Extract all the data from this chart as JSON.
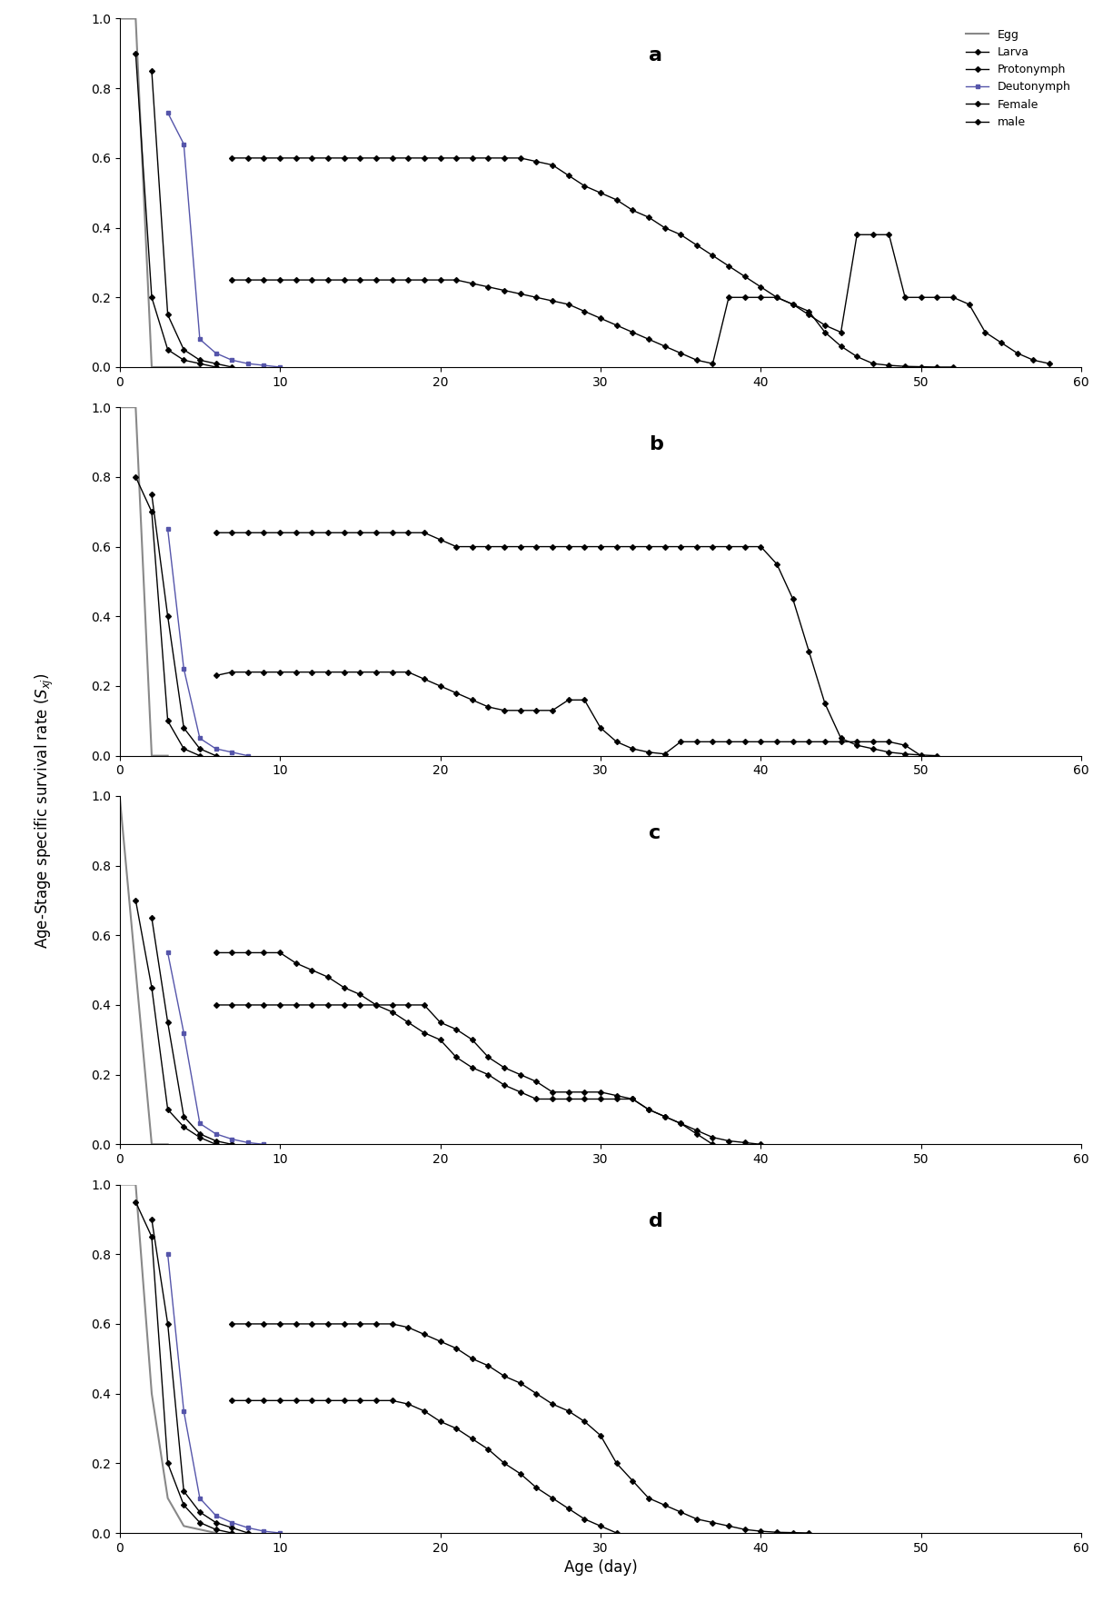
{
  "panels": [
    "a",
    "b",
    "c",
    "d"
  ],
  "xlabel": "Age (day)",
  "ylabel": "Age-Stage specific survival rate (Sₓ⨼)",
  "xlim": [
    0,
    60
  ],
  "ylim": [
    0,
    1
  ],
  "yticks": [
    0,
    0.2,
    0.4,
    0.6,
    0.8,
    1
  ],
  "xticks": [
    0,
    10,
    20,
    30,
    40,
    50,
    60
  ],
  "legend_labels": [
    "Egg",
    "Larva",
    "Protonymph",
    "Deutonymph",
    "Female",
    "male"
  ],
  "panel_a": {
    "egg": {
      "x": [
        0,
        1,
        2,
        3,
        4,
        5
      ],
      "y": [
        1.0,
        1.0,
        0.0,
        0.0,
        0.0,
        0.0
      ]
    },
    "larva": {
      "x": [
        1,
        2,
        3,
        4,
        5,
        6
      ],
      "y": [
        0.9,
        0.2,
        0.05,
        0.02,
        0.01,
        0.0
      ]
    },
    "protonymph": {
      "x": [
        2,
        3,
        4,
        5,
        6,
        7
      ],
      "y": [
        0.85,
        0.15,
        0.05,
        0.02,
        0.01,
        0.0
      ]
    },
    "deutonymph": {
      "x": [
        3,
        4,
        5,
        6,
        7,
        8,
        9,
        10
      ],
      "y": [
        0.73,
        0.64,
        0.08,
        0.04,
        0.02,
        0.01,
        0.005,
        0.0
      ]
    },
    "female": {
      "x": [
        7,
        8,
        9,
        10,
        11,
        12,
        13,
        14,
        15,
        16,
        17,
        18,
        19,
        20,
        21,
        22,
        23,
        24,
        25,
        26,
        27,
        28,
        29,
        30,
        31,
        32,
        33,
        34,
        35,
        36,
        37,
        38,
        39,
        40,
        41,
        42,
        43,
        44,
        45,
        46,
        47,
        48,
        49,
        50,
        51,
        52,
        53,
        54,
        55,
        56,
        57,
        58
      ],
      "y": [
        0.6,
        0.6,
        0.6,
        0.6,
        0.6,
        0.6,
        0.6,
        0.6,
        0.6,
        0.6,
        0.6,
        0.6,
        0.6,
        0.6,
        0.6,
        0.6,
        0.6,
        0.6,
        0.6,
        0.59,
        0.58,
        0.55,
        0.52,
        0.5,
        0.48,
        0.45,
        0.43,
        0.4,
        0.38,
        0.35,
        0.32,
        0.29,
        0.26,
        0.23,
        0.2,
        0.18,
        0.15,
        0.12,
        0.1,
        0.38,
        0.38,
        0.38,
        0.2,
        0.2,
        0.2,
        0.2,
        0.18,
        0.1,
        0.07,
        0.04,
        0.02,
        0.01
      ]
    },
    "male": {
      "x": [
        7,
        8,
        9,
        10,
        11,
        12,
        13,
        14,
        15,
        16,
        17,
        18,
        19,
        20,
        21,
        22,
        23,
        24,
        25,
        26,
        27,
        28,
        29,
        30,
        31,
        32,
        33,
        34,
        35,
        36,
        37,
        38,
        39,
        40,
        41,
        42,
        43,
        44,
        45,
        46,
        47,
        48,
        49,
        50,
        51,
        52
      ],
      "y": [
        0.25,
        0.25,
        0.25,
        0.25,
        0.25,
        0.25,
        0.25,
        0.25,
        0.25,
        0.25,
        0.25,
        0.25,
        0.25,
        0.25,
        0.25,
        0.24,
        0.23,
        0.22,
        0.21,
        0.2,
        0.19,
        0.18,
        0.16,
        0.14,
        0.12,
        0.1,
        0.08,
        0.06,
        0.04,
        0.02,
        0.01,
        0.2,
        0.2,
        0.2,
        0.2,
        0.18,
        0.16,
        0.1,
        0.06,
        0.03,
        0.01,
        0.005,
        0.002,
        0.001,
        0.0,
        0.0
      ]
    }
  },
  "panel_b": {
    "egg": {
      "x": [
        0,
        1,
        2,
        3
      ],
      "y": [
        1.0,
        1.0,
        0.0,
        0.0
      ]
    },
    "larva": {
      "x": [
        1,
        2,
        3,
        4,
        5
      ],
      "y": [
        0.8,
        0.7,
        0.1,
        0.02,
        0.0
      ]
    },
    "protonymph": {
      "x": [
        2,
        3,
        4,
        5,
        6
      ],
      "y": [
        0.75,
        0.4,
        0.08,
        0.02,
        0.0
      ]
    },
    "deutonymph": {
      "x": [
        3,
        4,
        5,
        6,
        7,
        8
      ],
      "y": [
        0.65,
        0.25,
        0.05,
        0.02,
        0.01,
        0.0
      ]
    },
    "female": {
      "x": [
        6,
        7,
        8,
        9,
        10,
        11,
        12,
        13,
        14,
        15,
        16,
        17,
        18,
        19,
        20,
        21,
        22,
        23,
        24,
        25,
        26,
        27,
        28,
        29,
        30,
        31,
        32,
        33,
        34,
        35,
        36,
        37,
        38,
        39,
        40,
        41,
        42,
        43,
        44,
        45,
        46,
        47,
        48,
        49,
        50,
        51
      ],
      "y": [
        0.64,
        0.64,
        0.64,
        0.64,
        0.64,
        0.64,
        0.64,
        0.64,
        0.64,
        0.64,
        0.64,
        0.64,
        0.64,
        0.64,
        0.62,
        0.6,
        0.6,
        0.6,
        0.6,
        0.6,
        0.6,
        0.6,
        0.6,
        0.6,
        0.6,
        0.6,
        0.6,
        0.6,
        0.6,
        0.6,
        0.6,
        0.6,
        0.6,
        0.6,
        0.6,
        0.55,
        0.45,
        0.3,
        0.15,
        0.05,
        0.03,
        0.02,
        0.01,
        0.005,
        0.002,
        0.0
      ]
    },
    "male": {
      "x": [
        6,
        7,
        8,
        9,
        10,
        11,
        12,
        13,
        14,
        15,
        16,
        17,
        18,
        19,
        20,
        21,
        22,
        23,
        24,
        25,
        26,
        27,
        28,
        29,
        30,
        31,
        32,
        33,
        34,
        35,
        36,
        37,
        38,
        39,
        40,
        41,
        42,
        43,
        44,
        45,
        46,
        47,
        48,
        49,
        50
      ],
      "y": [
        0.23,
        0.24,
        0.24,
        0.24,
        0.24,
        0.24,
        0.24,
        0.24,
        0.24,
        0.24,
        0.24,
        0.24,
        0.24,
        0.22,
        0.2,
        0.18,
        0.16,
        0.14,
        0.13,
        0.13,
        0.13,
        0.13,
        0.16,
        0.16,
        0.08,
        0.04,
        0.02,
        0.01,
        0.005,
        0.04,
        0.04,
        0.04,
        0.04,
        0.04,
        0.04,
        0.04,
        0.04,
        0.04,
        0.04,
        0.04,
        0.04,
        0.04,
        0.04,
        0.03,
        0.0
      ]
    }
  },
  "panel_c": {
    "egg": {
      "x": [
        0,
        1,
        2,
        3
      ],
      "y": [
        1.0,
        0.5,
        0.0,
        0.0
      ]
    },
    "larva": {
      "x": [
        1,
        2,
        3,
        4,
        5,
        6
      ],
      "y": [
        0.7,
        0.45,
        0.1,
        0.05,
        0.02,
        0.0
      ]
    },
    "protonymph": {
      "x": [
        2,
        3,
        4,
        5,
        6,
        7
      ],
      "y": [
        0.65,
        0.35,
        0.08,
        0.03,
        0.01,
        0.0
      ]
    },
    "deutonymph": {
      "x": [
        3,
        4,
        5,
        6,
        7,
        8,
        9
      ],
      "y": [
        0.55,
        0.32,
        0.06,
        0.03,
        0.015,
        0.005,
        0.0
      ]
    },
    "female": {
      "x": [
        6,
        7,
        8,
        9,
        10,
        11,
        12,
        13,
        14,
        15,
        16,
        17,
        18,
        19,
        20,
        21,
        22,
        23,
        24,
        25,
        26,
        27,
        28,
        29,
        30,
        31,
        32,
        33,
        34,
        35,
        36,
        37,
        38,
        39,
        40
      ],
      "y": [
        0.55,
        0.55,
        0.55,
        0.55,
        0.55,
        0.52,
        0.5,
        0.48,
        0.45,
        0.43,
        0.4,
        0.38,
        0.35,
        0.32,
        0.3,
        0.25,
        0.22,
        0.2,
        0.17,
        0.15,
        0.13,
        0.13,
        0.13,
        0.13,
        0.13,
        0.13,
        0.13,
        0.1,
        0.08,
        0.06,
        0.04,
        0.02,
        0.01,
        0.005,
        0.0
      ]
    },
    "male": {
      "x": [
        6,
        7,
        8,
        9,
        10,
        11,
        12,
        13,
        14,
        15,
        16,
        17,
        18,
        19,
        20,
        21,
        22,
        23,
        24,
        25,
        26,
        27,
        28,
        29,
        30,
        31,
        32,
        33,
        34,
        35,
        36,
        37
      ],
      "y": [
        0.4,
        0.4,
        0.4,
        0.4,
        0.4,
        0.4,
        0.4,
        0.4,
        0.4,
        0.4,
        0.4,
        0.4,
        0.4,
        0.4,
        0.35,
        0.33,
        0.3,
        0.25,
        0.22,
        0.2,
        0.18,
        0.15,
        0.15,
        0.15,
        0.15,
        0.14,
        0.13,
        0.1,
        0.08,
        0.06,
        0.03,
        0.0
      ]
    }
  },
  "panel_d": {
    "egg": {
      "x": [
        0,
        1,
        2,
        3,
        4,
        5,
        6
      ],
      "y": [
        1.0,
        1.0,
        0.4,
        0.1,
        0.02,
        0.01,
        0.0
      ]
    },
    "larva": {
      "x": [
        1,
        2,
        3,
        4,
        5,
        6,
        7
      ],
      "y": [
        0.95,
        0.85,
        0.2,
        0.08,
        0.03,
        0.01,
        0.0
      ]
    },
    "protonymph": {
      "x": [
        2,
        3,
        4,
        5,
        6,
        7,
        8
      ],
      "y": [
        0.9,
        0.6,
        0.12,
        0.06,
        0.03,
        0.015,
        0.0
      ]
    },
    "deutonymph": {
      "x": [
        3,
        4,
        5,
        6,
        7,
        8,
        9,
        10
      ],
      "y": [
        0.8,
        0.35,
        0.1,
        0.05,
        0.03,
        0.015,
        0.005,
        0.0
      ]
    },
    "female": {
      "x": [
        7,
        8,
        9,
        10,
        11,
        12,
        13,
        14,
        15,
        16,
        17,
        18,
        19,
        20,
        21,
        22,
        23,
        24,
        25,
        26,
        27,
        28,
        29,
        30,
        31,
        32,
        33,
        34,
        35,
        36,
        37,
        38,
        39,
        40,
        41,
        42,
        43
      ],
      "y": [
        0.6,
        0.6,
        0.6,
        0.6,
        0.6,
        0.6,
        0.6,
        0.6,
        0.6,
        0.6,
        0.6,
        0.59,
        0.57,
        0.55,
        0.53,
        0.5,
        0.48,
        0.45,
        0.43,
        0.4,
        0.37,
        0.35,
        0.32,
        0.28,
        0.2,
        0.15,
        0.1,
        0.08,
        0.06,
        0.04,
        0.03,
        0.02,
        0.01,
        0.005,
        0.002,
        0.001,
        0.0
      ]
    },
    "male": {
      "x": [
        7,
        8,
        9,
        10,
        11,
        12,
        13,
        14,
        15,
        16,
        17,
        18,
        19,
        20,
        21,
        22,
        23,
        24,
        25,
        26,
        27,
        28,
        29,
        30,
        31
      ],
      "y": [
        0.38,
        0.38,
        0.38,
        0.38,
        0.38,
        0.38,
        0.38,
        0.38,
        0.38,
        0.38,
        0.38,
        0.37,
        0.35,
        0.32,
        0.3,
        0.27,
        0.24,
        0.2,
        0.17,
        0.13,
        0.1,
        0.07,
        0.04,
        0.02,
        0.0
      ]
    }
  }
}
